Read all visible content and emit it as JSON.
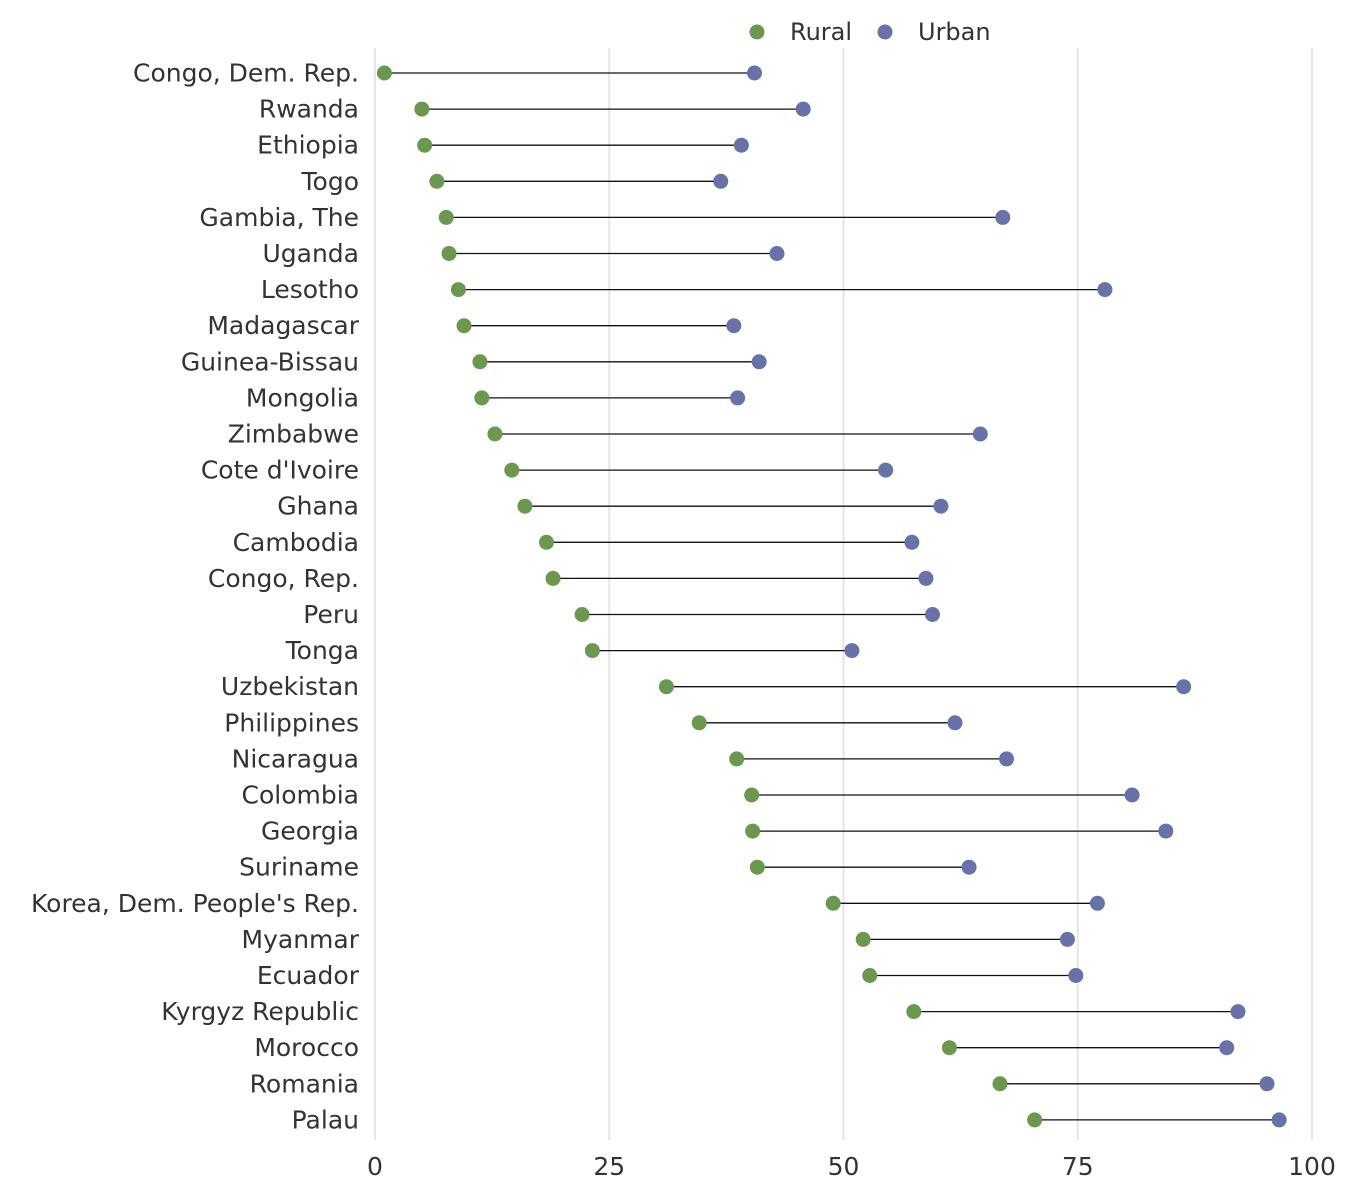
{
  "chart_data": {
    "type": "dumbbell",
    "title": "",
    "xlabel": "",
    "ylabel": "",
    "xlim": [
      0,
      100
    ],
    "x_ticks": [
      0,
      25,
      50,
      75,
      100
    ],
    "grid": true,
    "legend_position": "top",
    "series": [
      {
        "name": "Rural",
        "color": "#6a994e"
      },
      {
        "name": "Urban",
        "color": "#6672a8"
      }
    ],
    "rows": [
      {
        "country": "Congo, Dem. Rep.",
        "rural": 1,
        "urban": 40.5
      },
      {
        "country": "Rwanda",
        "rural": 5,
        "urban": 45.7
      },
      {
        "country": "Ethiopia",
        "rural": 5.3,
        "urban": 39.1
      },
      {
        "country": "Togo",
        "rural": 6.6,
        "urban": 36.9
      },
      {
        "country": "Gambia, The",
        "rural": 7.6,
        "urban": 67
      },
      {
        "country": "Uganda",
        "rural": 7.9,
        "urban": 42.9
      },
      {
        "country": "Lesotho",
        "rural": 8.9,
        "urban": 77.9
      },
      {
        "country": "Madagascar",
        "rural": 9.5,
        "urban": 38.3
      },
      {
        "country": "Guinea-Bissau",
        "rural": 11.2,
        "urban": 41
      },
      {
        "country": "Mongolia",
        "rural": 11.4,
        "urban": 38.7
      },
      {
        "country": "Zimbabwe",
        "rural": 12.8,
        "urban": 64.6
      },
      {
        "country": "Cote d'Ivoire",
        "rural": 14.6,
        "urban": 54.5
      },
      {
        "country": "Ghana",
        "rural": 16,
        "urban": 60.4
      },
      {
        "country": "Cambodia",
        "rural": 18.3,
        "urban": 57.3
      },
      {
        "country": "Congo, Rep.",
        "rural": 19,
        "urban": 58.8
      },
      {
        "country": "Peru",
        "rural": 22.1,
        "urban": 59.5
      },
      {
        "country": "Tonga",
        "rural": 23.2,
        "urban": 50.9
      },
      {
        "country": "Uzbekistan",
        "rural": 31.1,
        "urban": 86.3
      },
      {
        "country": "Philippines",
        "rural": 34.6,
        "urban": 61.9
      },
      {
        "country": "Nicaragua",
        "rural": 38.6,
        "urban": 67.4
      },
      {
        "country": "Colombia",
        "rural": 40.2,
        "urban": 80.8
      },
      {
        "country": "Georgia",
        "rural": 40.3,
        "urban": 84.4
      },
      {
        "country": "Suriname",
        "rural": 40.8,
        "urban": 63.4
      },
      {
        "country": "Korea, Dem. People's Rep.",
        "rural": 48.9,
        "urban": 77.1
      },
      {
        "country": "Myanmar",
        "rural": 52.1,
        "urban": 73.9
      },
      {
        "country": "Ecuador",
        "rural": 52.8,
        "urban": 74.8
      },
      {
        "country": "Kyrgyz Republic",
        "rural": 57.5,
        "urban": 92.1
      },
      {
        "country": "Morocco",
        "rural": 61.3,
        "urban": 90.9
      },
      {
        "country": "Romania",
        "rural": 66.7,
        "urban": 95.2
      },
      {
        "country": "Palau",
        "rural": 70.4,
        "urban": 96.5
      }
    ]
  }
}
